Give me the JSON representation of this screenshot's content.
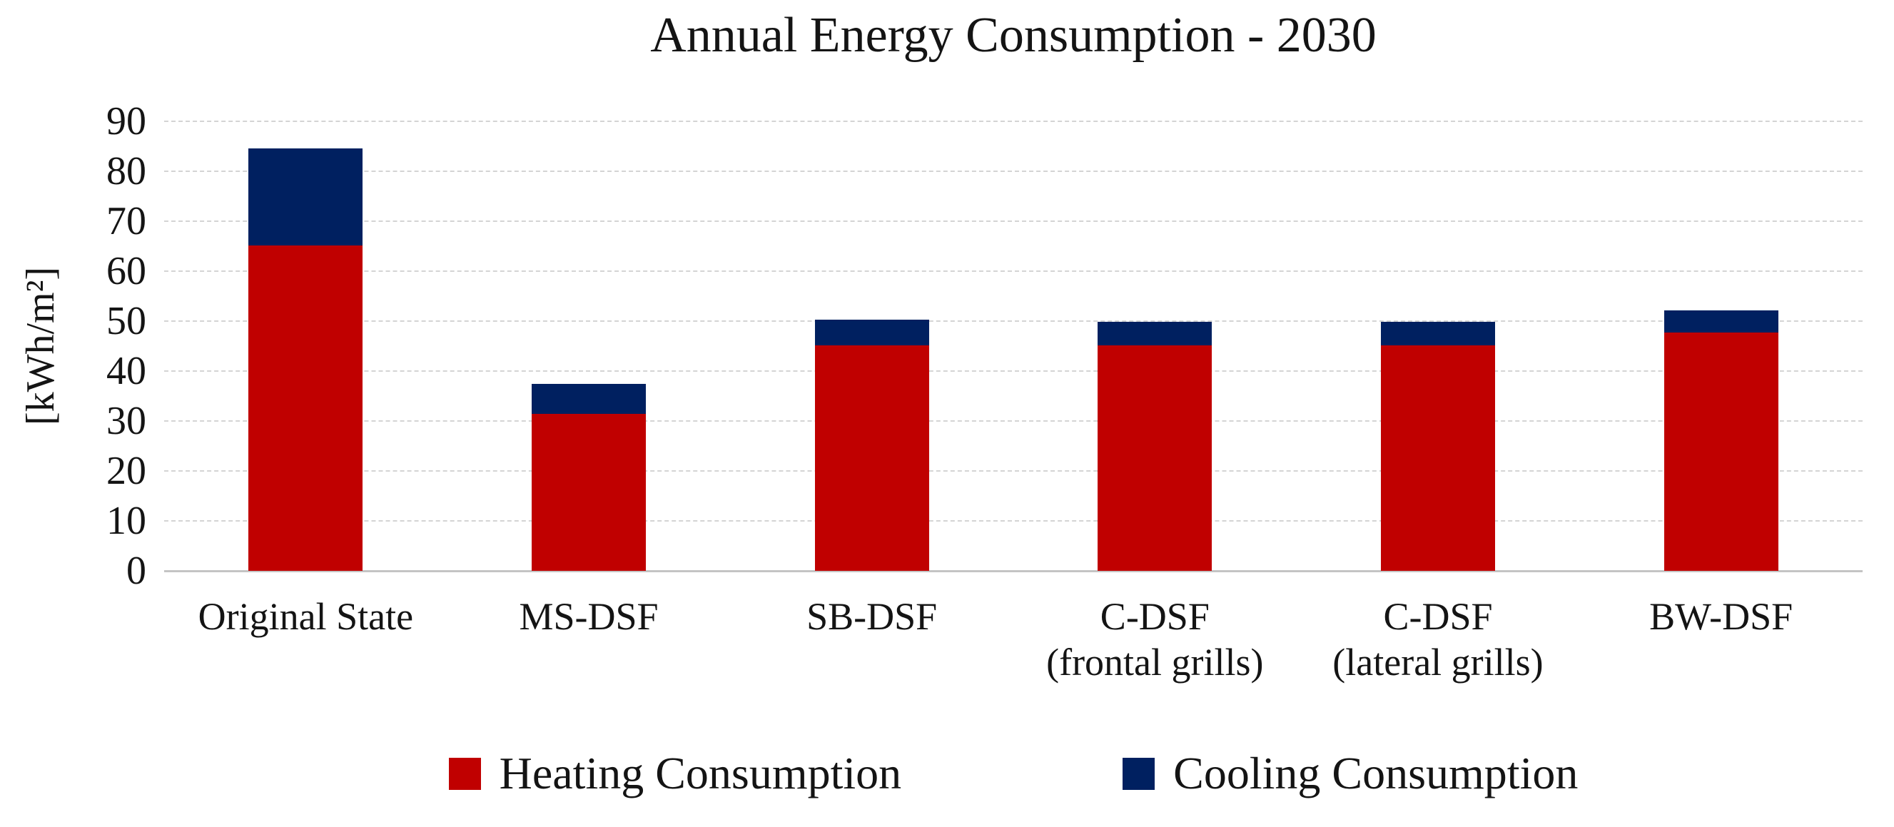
{
  "chart_data": {
    "type": "bar",
    "stacked": true,
    "title": "Annual Energy Consumption - 2030",
    "xlabel": "",
    "ylabel": "[kWh/m²]",
    "ylim": [
      0,
      90
    ],
    "ytick_step": 10,
    "yticks": [
      90,
      80,
      70,
      60,
      50,
      40,
      30,
      20,
      10,
      0
    ],
    "grid": "horizontal-dashed",
    "legend_position": "bottom-center",
    "categories": [
      "Original State",
      "MS-DSF",
      "SB-DSF",
      "C-DSF (frontal grills)",
      "C-DSF (lateral grills)",
      "BW-DSF"
    ],
    "category_lines": [
      [
        "Original State"
      ],
      [
        "MS-DSF"
      ],
      [
        "SB-DSF"
      ],
      [
        "C-DSF",
        "(frontal grills)"
      ],
      [
        "C-DSF",
        "(lateral grills)"
      ],
      [
        "BW-DSF"
      ]
    ],
    "series": [
      {
        "name": "Heating Consumption",
        "color": "#C00000",
        "values": [
          65.2,
          31.4,
          45.2,
          45.2,
          45.2,
          47.7
        ]
      },
      {
        "name": "Cooling Consumption",
        "color": "#002060",
        "values": [
          19.4,
          6.0,
          5.1,
          4.7,
          4.6,
          4.4
        ]
      }
    ],
    "stacked_totals": [
      84.6,
      37.4,
      50.3,
      49.9,
      49.8,
      52.1
    ]
  },
  "colors": {
    "heating": "#C00000",
    "cooling": "#002060",
    "gridline": "#d4d4d4",
    "baseline": "#c4c4c4",
    "text": "#141414",
    "background": "#ffffff"
  }
}
